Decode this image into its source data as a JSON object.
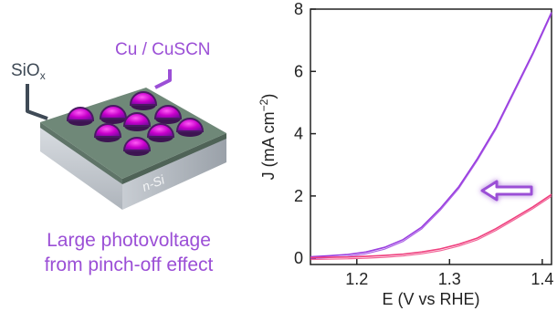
{
  "illustration": {
    "label_sio": "SiO",
    "label_sio_sub": "x",
    "label_cu": "Cu / CuSCN",
    "label_nsi": "n-Si",
    "caption_line1": "Large photovoltage",
    "caption_line2": "from pinch-off effect",
    "colors": {
      "purple_text": "#9b4fd6",
      "dark_text": "#3f4a56",
      "dome": "#c400c8",
      "dome_rim": "#4a1a63"
    }
  },
  "chart_data": {
    "type": "line",
    "xlabel": "E (V vs RHE)",
    "ylabel_main": "J (mA cm",
    "ylabel_sup": "−2",
    "ylabel_close": ")",
    "xlim": [
      1.15,
      1.41
    ],
    "ylim": [
      -0.2,
      8.0
    ],
    "xticks": [
      1.2,
      1.3,
      1.4
    ],
    "xtick_labels": [
      "1.2",
      "1.3",
      "1.4"
    ],
    "yticks": [
      0,
      2,
      4,
      6,
      8
    ],
    "ytick_labels": [
      "0",
      "2",
      "4",
      "6",
      "8"
    ],
    "grid": false,
    "series": [
      {
        "color": "#9a3fe0",
        "x": [
          1.15,
          1.17,
          1.19,
          1.21,
          1.23,
          1.25,
          1.27,
          1.29,
          1.31,
          1.33,
          1.35,
          1.37,
          1.39,
          1.41
        ],
        "y": [
          0.05,
          0.08,
          0.12,
          0.2,
          0.35,
          0.6,
          1.0,
          1.6,
          2.3,
          3.2,
          4.2,
          5.4,
          6.6,
          7.9
        ]
      },
      {
        "color": "#ef3f7e",
        "x": [
          1.15,
          1.17,
          1.19,
          1.21,
          1.23,
          1.25,
          1.27,
          1.29,
          1.31,
          1.33,
          1.35,
          1.37,
          1.39,
          1.41
        ],
        "y": [
          0.02,
          0.03,
          0.04,
          0.06,
          0.09,
          0.13,
          0.2,
          0.3,
          0.45,
          0.65,
          0.95,
          1.3,
          1.65,
          2.05
        ]
      }
    ],
    "arrow_color": "#9b4fd6"
  }
}
